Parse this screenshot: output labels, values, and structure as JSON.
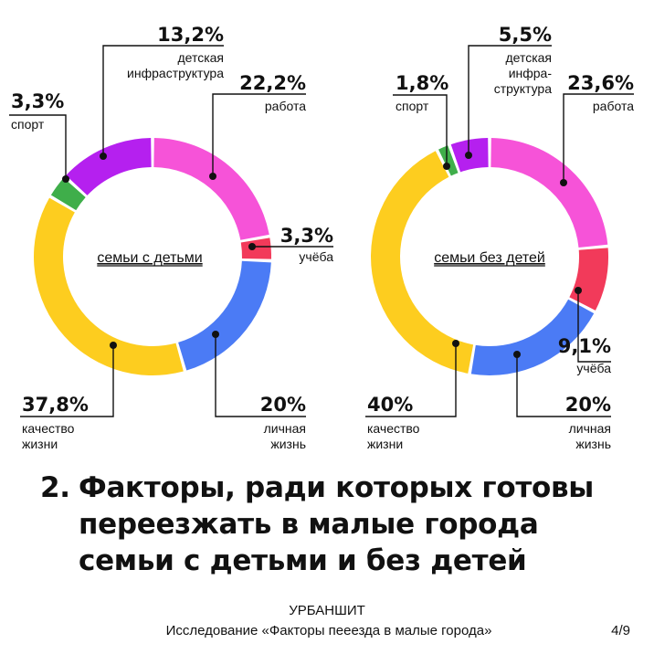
{
  "chart_data": [
    {
      "type": "donut",
      "center_label": "семьи с детьми",
      "slices": [
        {
          "key": "work",
          "label": "работа",
          "value": 22.2,
          "display": "22,2%",
          "color": "#f653d8"
        },
        {
          "key": "study",
          "label": "учёба",
          "value": 3.3,
          "display": "3,3%",
          "color": "#f23a5a"
        },
        {
          "key": "life",
          "label": "личная жизнь",
          "value": 20,
          "display": "20%",
          "color": "#4b7bf5"
        },
        {
          "key": "qual",
          "label": "качество жизни",
          "value": 37.8,
          "display": "37,8%",
          "color": "#fdcd1f"
        },
        {
          "key": "sport",
          "label": "спорт",
          "value": 3.3,
          "display": "3,3%",
          "color": "#3fae4a"
        },
        {
          "key": "infra",
          "label": "детская инфраструктура",
          "value": 13.2,
          "display": "13,2%",
          "color": "#b520ef"
        }
      ]
    },
    {
      "type": "donut",
      "center_label": "семьи без детей",
      "slices": [
        {
          "key": "work",
          "label": "работа",
          "value": 23.6,
          "display": "23,6%",
          "color": "#f653d8"
        },
        {
          "key": "study",
          "label": "учёба",
          "value": 9.1,
          "display": "9,1%",
          "color": "#f23a5a"
        },
        {
          "key": "life",
          "label": "личная жизнь",
          "value": 20,
          "display": "20%",
          "color": "#4b7bf5"
        },
        {
          "key": "qual",
          "label": "качество жизни",
          "value": 40,
          "display": "40%",
          "color": "#fdcd1f"
        },
        {
          "key": "sport",
          "label": "спорт",
          "value": 1.8,
          "display": "1,8%",
          "color": "#3fae4a"
        },
        {
          "key": "infra",
          "label": "детская инфра-структура",
          "value": 5.5,
          "display": "5,5%",
          "color": "#b520ef"
        }
      ]
    }
  ],
  "heading": {
    "number": "2.",
    "text": "Факторы, ради которых готовы переезжать в малые города семьи с детьми и без детей"
  },
  "footer": {
    "brand": "УРБАНШИТ",
    "subtitle": "Исследование «Факторы пееезда в малые города»",
    "page": "4/9"
  }
}
